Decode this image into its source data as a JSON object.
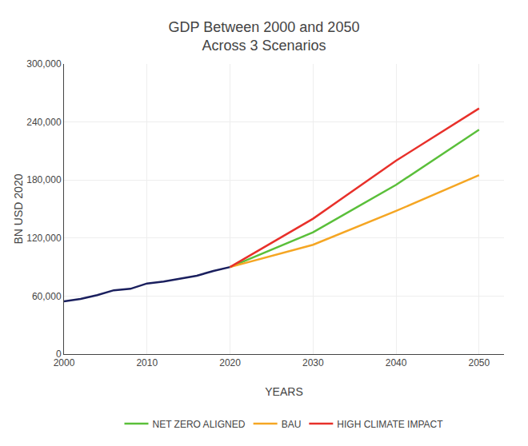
{
  "chart_data": {
    "type": "line",
    "title": "GDP Between 2000 and 2050",
    "subtitle": "Across 3 Scenarios",
    "x_label": "YEARS",
    "y_label": "BN USD 2020",
    "xlim": [
      2000,
      2053
    ],
    "ylim": [
      0,
      300000
    ],
    "xticks": [
      2000,
      2010,
      2020,
      2030,
      2040,
      2050
    ],
    "yticks": [
      0,
      {
        "value": 60000,
        "label": "60,000"
      },
      {
        "value": 120000,
        "label": "120,000"
      },
      {
        "value": 180000,
        "label": "180,000"
      },
      {
        "value": 240000,
        "label": "240,000"
      },
      {
        "value": 300000,
        "label": "300,000"
      }
    ],
    "grid": true,
    "legend": "bottom",
    "series": [
      {
        "color": "#1a1f5e",
        "x": [
          2000,
          2002,
          2004,
          2006,
          2008,
          2010,
          2012,
          2014,
          2016,
          2018,
          2020
        ],
        "values": [
          54500,
          57000,
          61000,
          66000,
          67500,
          73000,
          75000,
          78000,
          81000,
          86000,
          90000
        ]
      },
      {
        "name": "NET ZERO ALIGNED",
        "color": "#5abf3a",
        "x": [
          2020,
          2030,
          2040,
          2050
        ],
        "values": [
          90000,
          126000,
          175000,
          232000
        ]
      },
      {
        "name": "BAU",
        "color": "#f5a623",
        "x": [
          2020,
          2030,
          2040,
          2050
        ],
        "values": [
          90000,
          113000,
          148000,
          185000
        ]
      },
      {
        "name": "HIGH CLIMATE IMPACT",
        "color": "#e8302a",
        "x": [
          2020,
          2030,
          2040,
          2050
        ],
        "values": [
          90000,
          140000,
          200000,
          254000
        ]
      }
    ]
  }
}
